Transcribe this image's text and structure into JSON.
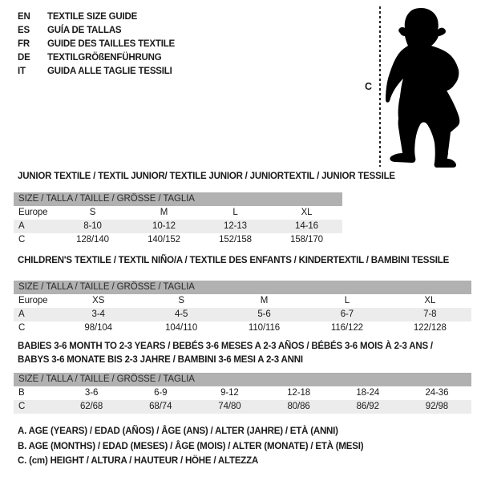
{
  "colors": {
    "header_band": "#b1b1b1",
    "row_shaded": "#ececec",
    "marker_line": "#222222",
    "silhouette": "#000000",
    "text": "#1a1a1a"
  },
  "header": {
    "languages": [
      {
        "code": "EN",
        "label": "TEXTILE SIZE GUIDE"
      },
      {
        "code": "ES",
        "label": "GUÍA DE TALLAS"
      },
      {
        "code": "FR",
        "label": "GUIDE DES TAILLES TEXTILE"
      },
      {
        "code": "DE",
        "label": "TEXTILGRÖßENFÜHRUNG"
      },
      {
        "code": "IT",
        "label": "GUIDA ALLE TAGLIE TESSILI"
      }
    ]
  },
  "figure": {
    "image": "baby-toddler-silhouette",
    "height_marker_label": "C"
  },
  "tables": [
    {
      "title": "JUNIOR TEXTILE / TEXTIL JUNIOR/ TEXTILE JUNIOR / JUNIORTEXTIL / JUNIOR TESSILE",
      "size_header": "SIZE / TALLA / TAILLE / GRÖSSE / TAGLIA",
      "rows": [
        {
          "label": "Europe",
          "cells": [
            "S",
            "M",
            "L",
            "XL"
          ],
          "shaded": false
        },
        {
          "label": "A",
          "cells": [
            "8-10",
            "10-12",
            "12-13",
            "14-16"
          ],
          "shaded": true
        },
        {
          "label": "C",
          "cells": [
            "128/140",
            "140/152",
            "152/158",
            "158/170"
          ],
          "shaded": false
        }
      ]
    },
    {
      "title": "CHILDREN'S TEXTILE / TEXTIL NIÑO/A / TEXTILE DES ENFANTS / KINDERTEXTIL / BAMBINI TESSILE",
      "size_header": "SIZE / TALLA / TAILLE / GRÖSSE / TAGLIA",
      "rows": [
        {
          "label": "Europe",
          "cells": [
            "XS",
            "S",
            "M",
            "L",
            "XL"
          ],
          "shaded": false
        },
        {
          "label": "A",
          "cells": [
            "3-4",
            "4-5",
            "5-6",
            "6-7",
            "7-8"
          ],
          "shaded": true
        },
        {
          "label": "C",
          "cells": [
            "98/104",
            "104/110",
            "110/116",
            "116/122",
            "122/128"
          ],
          "shaded": false
        }
      ]
    },
    {
      "title": "BABIES 3-6 MONTH TO 2-3 YEARS / BEBÉS 3-6 MESES A 2-3 AÑOS / BÉBÉS 3-6 MOIS À 2-3 ANS /",
      "title_line2": "BABYS 3-6 MONATE BIS 2-3 JAHRE / BAMBINI 3-6 MESI A 2-3 ANNI",
      "size_header": "SIZE / TALLA / TAILLE / GRÖSSE / TAGLIA",
      "rows": [
        {
          "label": "B",
          "cells": [
            "3-6",
            "6-9",
            "9-12",
            "12-18",
            "18-24",
            "24-36"
          ],
          "shaded": false
        },
        {
          "label": "C",
          "cells": [
            "62/68",
            "68/74",
            "74/80",
            "80/86",
            "86/92",
            "92/98"
          ],
          "shaded": true
        }
      ]
    }
  ],
  "footnotes": [
    "A. AGE (YEARS) / EDAD (AÑOS) / ÂGE (ANS) / ALTER (JAHRE) / ETÀ (ANNI)",
    "B. AGE (MONTHS) / EDAD (MESES) / ÂGE (MOIS) / ALTER (MONATE) / ETÀ (MESI)",
    "C. (cm) HEIGHT / ALTURA / HAUTEUR / HÖHE / ALTEZZA"
  ]
}
